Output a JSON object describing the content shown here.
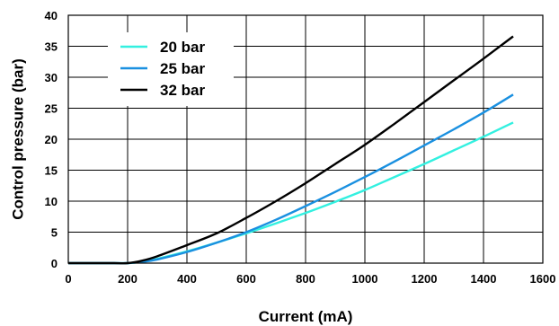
{
  "chart_data": {
    "type": "line",
    "title": "",
    "xlabel": "Current (mA)",
    "ylabel": "Control pressure (bar)",
    "xlim": [
      0,
      1600
    ],
    "ylim": [
      0,
      40
    ],
    "xticks": [
      0,
      200,
      400,
      600,
      800,
      1000,
      1200,
      1400,
      1600
    ],
    "yticks": [
      0,
      5,
      10,
      15,
      20,
      25,
      30,
      35,
      40
    ],
    "grid": true,
    "legend_position": "top-left",
    "series": [
      {
        "name": "20 bar",
        "color": "#33f0e0",
        "x": [
          0,
          150,
          200,
          250,
          300,
          400,
          500,
          600,
          700,
          800,
          900,
          1000,
          1100,
          1200,
          1300,
          1400,
          1500
        ],
        "y": [
          0,
          0,
          0,
          0.2,
          0.7,
          1.9,
          3.3,
          4.8,
          6.4,
          8.1,
          9.9,
          11.8,
          13.9,
          16.0,
          18.2,
          20.4,
          22.7
        ]
      },
      {
        "name": "25 bar",
        "color": "#1a90e0",
        "x": [
          0,
          150,
          200,
          250,
          300,
          400,
          500,
          600,
          700,
          800,
          900,
          1000,
          1100,
          1200,
          1300,
          1400,
          1500
        ],
        "y": [
          0,
          0,
          0,
          0.2,
          0.6,
          1.8,
          3.3,
          5.0,
          7.0,
          9.2,
          11.5,
          13.9,
          16.4,
          19.0,
          21.6,
          24.3,
          27.2
        ]
      },
      {
        "name": "32 bar",
        "color": "#000000",
        "x": [
          0,
          150,
          200,
          250,
          300,
          400,
          500,
          600,
          700,
          800,
          900,
          1000,
          1100,
          1200,
          1300,
          1400,
          1500
        ],
        "y": [
          0,
          0,
          0,
          0.4,
          1.1,
          2.9,
          4.8,
          7.3,
          10.0,
          12.9,
          16.0,
          19.1,
          22.5,
          26.0,
          29.5,
          33.0,
          36.6
        ]
      }
    ]
  }
}
